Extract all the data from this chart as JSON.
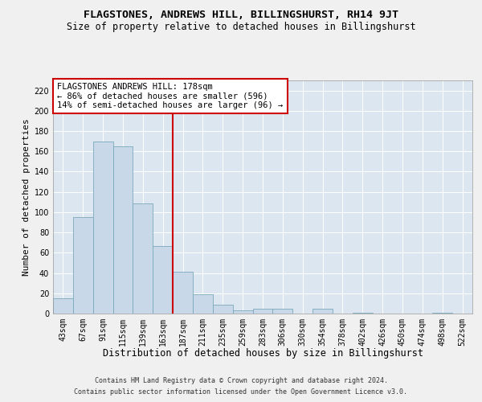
{
  "title": "FLAGSTONES, ANDREWS HILL, BILLINGSHURST, RH14 9JT",
  "subtitle": "Size of property relative to detached houses in Billingshurst",
  "xlabel": "Distribution of detached houses by size in Billingshurst",
  "ylabel": "Number of detached properties",
  "categories": [
    "43sqm",
    "67sqm",
    "91sqm",
    "115sqm",
    "139sqm",
    "163sqm",
    "187sqm",
    "211sqm",
    "235sqm",
    "259sqm",
    "283sqm",
    "306sqm",
    "330sqm",
    "354sqm",
    "378sqm",
    "402sqm",
    "426sqm",
    "450sqm",
    "474sqm",
    "498sqm",
    "522sqm"
  ],
  "values": [
    15,
    95,
    170,
    165,
    109,
    67,
    41,
    19,
    9,
    3,
    5,
    5,
    0,
    5,
    0,
    1,
    0,
    0,
    0,
    1,
    0
  ],
  "bar_color": "#c8d8e8",
  "bar_edge_color": "#7aaabb",
  "vline_x_idx": 6,
  "vline_color": "#cc0000",
  "annotation_text": "FLAGSTONES ANDREWS HILL: 178sqm\n← 86% of detached houses are smaller (596)\n14% of semi-detached houses are larger (96) →",
  "annotation_box_color": "#ffffff",
  "annotation_box_edge": "#cc0000",
  "ylim": [
    0,
    230
  ],
  "yticks": [
    0,
    20,
    40,
    60,
    80,
    100,
    120,
    140,
    160,
    180,
    200,
    220
  ],
  "fig_bg_color": "#f0f0f0",
  "plot_bg_color": "#dce6f0",
  "grid_color": "#ffffff",
  "footer_line1": "Contains HM Land Registry data © Crown copyright and database right 2024.",
  "footer_line2": "Contains public sector information licensed under the Open Government Licence v3.0.",
  "title_fontsize": 9.5,
  "subtitle_fontsize": 8.5,
  "xlabel_fontsize": 8.5,
  "ylabel_fontsize": 8,
  "tick_fontsize": 7,
  "footer_fontsize": 6,
  "annotation_fontsize": 7.5
}
